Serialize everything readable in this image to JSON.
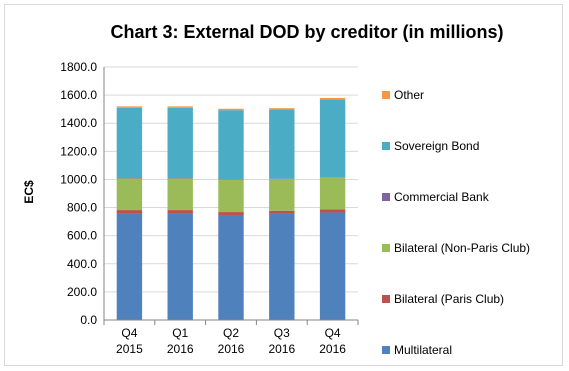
{
  "chart_data": {
    "type": "bar",
    "stacked": true,
    "title": "Chart 3: External DOD by creditor (in millions)",
    "xlabel": "",
    "ylabel": "EC$",
    "ylim": [
      0,
      1800
    ],
    "yticks": [
      "0.0",
      "200.0",
      "400.0",
      "600.0",
      "800.0",
      "1000.0",
      "1200.0",
      "1400.0",
      "1600.0",
      "1800.0"
    ],
    "categories": [
      [
        "Q4",
        "2015"
      ],
      [
        "Q1",
        "2016"
      ],
      [
        "Q2",
        "2016"
      ],
      [
        "Q3",
        "2016"
      ],
      [
        "Q4",
        "2016"
      ]
    ],
    "series": [
      {
        "name": "Multilateral",
        "color": "#4F81BD",
        "values": [
          757,
          757,
          743,
          755,
          765
        ]
      },
      {
        "name": "Bilateral (Paris Club)",
        "color": "#C0504D",
        "values": [
          25,
          25,
          25,
          22,
          22
        ]
      },
      {
        "name": "Bilateral (Non-Paris Club)",
        "color": "#9BBB59",
        "values": [
          225,
          225,
          232,
          225,
          225
        ]
      },
      {
        "name": "Commercial Bank",
        "color": "#8064A2",
        "values": [
          3,
          3,
          3,
          3,
          3
        ]
      },
      {
        "name": "Sovereign Bond",
        "color": "#4BACC6",
        "values": [
          500,
          500,
          490,
          492,
          555
        ]
      },
      {
        "name": "Other",
        "color": "#F79646",
        "values": [
          10,
          10,
          10,
          10,
          10
        ]
      }
    ],
    "grid": true,
    "legend_position": "right"
  }
}
